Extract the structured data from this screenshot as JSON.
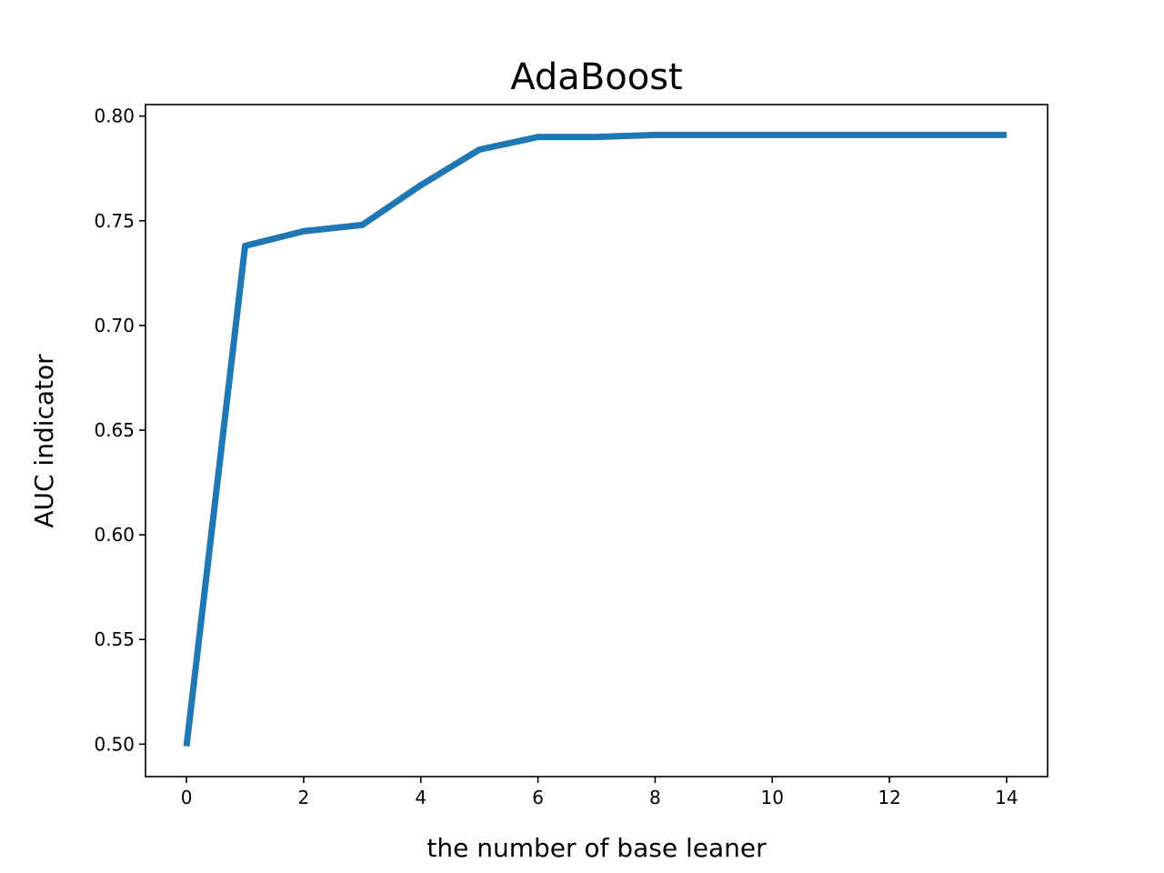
{
  "chart_data": {
    "type": "line",
    "title": "AdaBoost",
    "xlabel": "the number of base leaner",
    "ylabel": "AUC indicator",
    "xlim": [
      -0.7,
      14.7
    ],
    "ylim": [
      0.4845,
      0.8055
    ],
    "xticks": [
      0,
      2,
      4,
      6,
      8,
      10,
      12,
      14
    ],
    "xtick_labels": [
      "0",
      "2",
      "4",
      "6",
      "8",
      "10",
      "12",
      "14"
    ],
    "yticks": [
      0.5,
      0.55,
      0.6,
      0.65,
      0.7,
      0.75,
      0.8
    ],
    "ytick_labels": [
      "0.50",
      "0.55",
      "0.60",
      "0.65",
      "0.70",
      "0.75",
      "0.80"
    ],
    "grid": false,
    "series": [
      {
        "color": "#1f77b4",
        "x": [
          0,
          1,
          2,
          3,
          4,
          5,
          6,
          7,
          8,
          9,
          10,
          11,
          12,
          13,
          14
        ],
        "y": [
          0.499,
          0.738,
          0.745,
          0.748,
          0.767,
          0.784,
          0.79,
          0.79,
          0.791,
          0.791,
          0.791,
          0.791,
          0.791,
          0.791,
          0.791
        ]
      }
    ]
  }
}
